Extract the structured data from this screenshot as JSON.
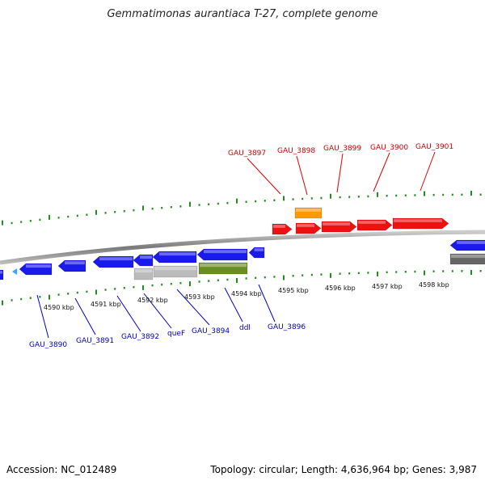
{
  "title": "Gemmatimonas aurantiaca T-27, complete genome",
  "accession": "Accession: NC_012489",
  "topology": "Topology: circular; Length: 4,636,964 bp; Genes: 3,987",
  "colors": {
    "red_gene": "#ee1111",
    "blue_gene": "#1a1aee",
    "orange_gene": "#ff9900",
    "grey_gene": "#bbbbbb",
    "olive_gene": "#6b8e23",
    "dark_grey_gene": "#666666",
    "light_blue_gene": "#33aaff",
    "tick_green": "#228b22",
    "backbone": "#888888",
    "red_label": "#cc0000",
    "blue_label": "#0000bb"
  },
  "kbp_labels": [
    "4590 kbp",
    "4591 kbp",
    "4592 kbp",
    "4593 kbp",
    "4594 kbp",
    "4595 kbp",
    "4596 kbp",
    "4597 kbp",
    "4598 kbp"
  ],
  "upper_genes": [
    "GAU_3897",
    "GAU_3898",
    "GAU_3899",
    "GAU_3900",
    "GAU_3901"
  ],
  "lower_genes": [
    "GAU_3890",
    "GAU_3891",
    "GAU_3892",
    "queF",
    "GAU_3894",
    "ddl",
    "GAU_3896"
  ]
}
